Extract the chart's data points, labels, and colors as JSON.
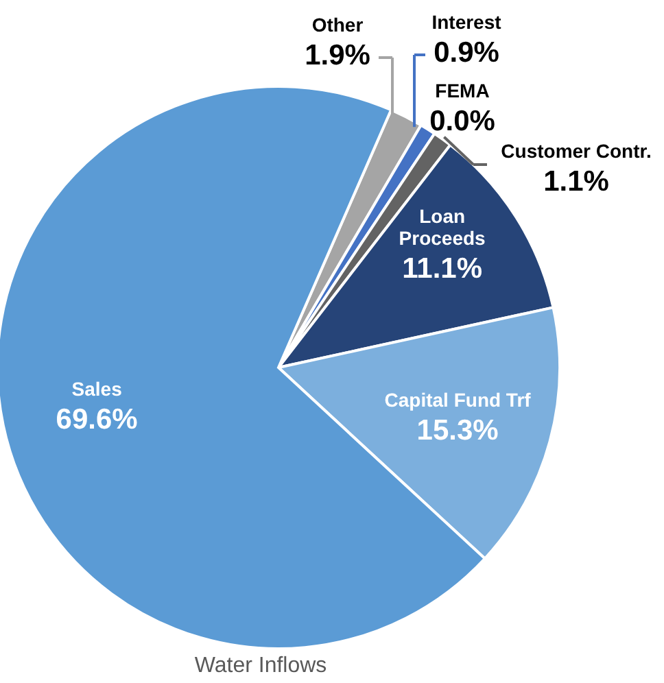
{
  "chart_data": {
    "type": "pie",
    "title": "Water Inflows",
    "categories": [
      "Other",
      "Interest",
      "FEMA",
      "Customer Contr.",
      "Loan Proceeds",
      "Capital Fund Trf",
      "Sales"
    ],
    "values": [
      1.9,
      0.9,
      0.0,
      1.1,
      11.1,
      15.3,
      69.6
    ],
    "value_labels": [
      "1.9%",
      "0.9%",
      "0.0%",
      "1.1%",
      "11.1%",
      "15.3%",
      "69.6%"
    ],
    "colors": [
      "#a5a5a5",
      "#4472c4",
      "#ffc000",
      "#636363",
      "#264478",
      "#7cafdd",
      "#5b9bd5"
    ]
  }
}
